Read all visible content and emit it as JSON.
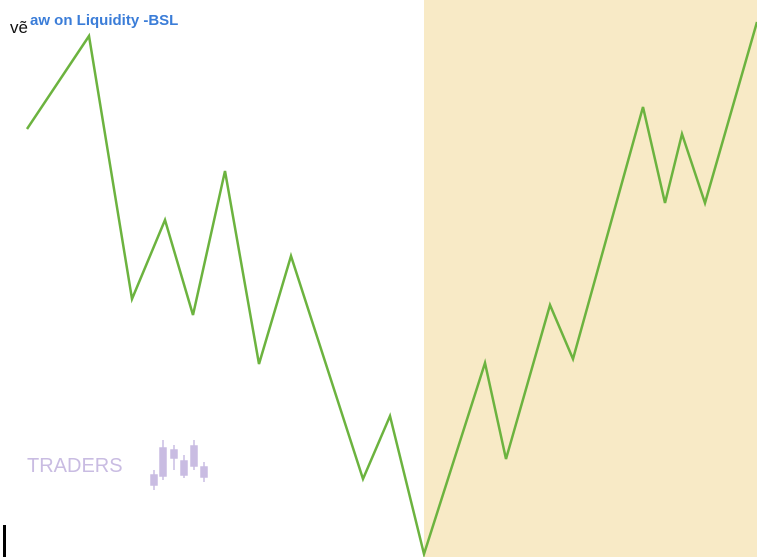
{
  "header": {
    "prefix": "vẽ",
    "title": "aw on Liquidity -BSL"
  },
  "watermark": {
    "label": "TRADERS"
  }
}
